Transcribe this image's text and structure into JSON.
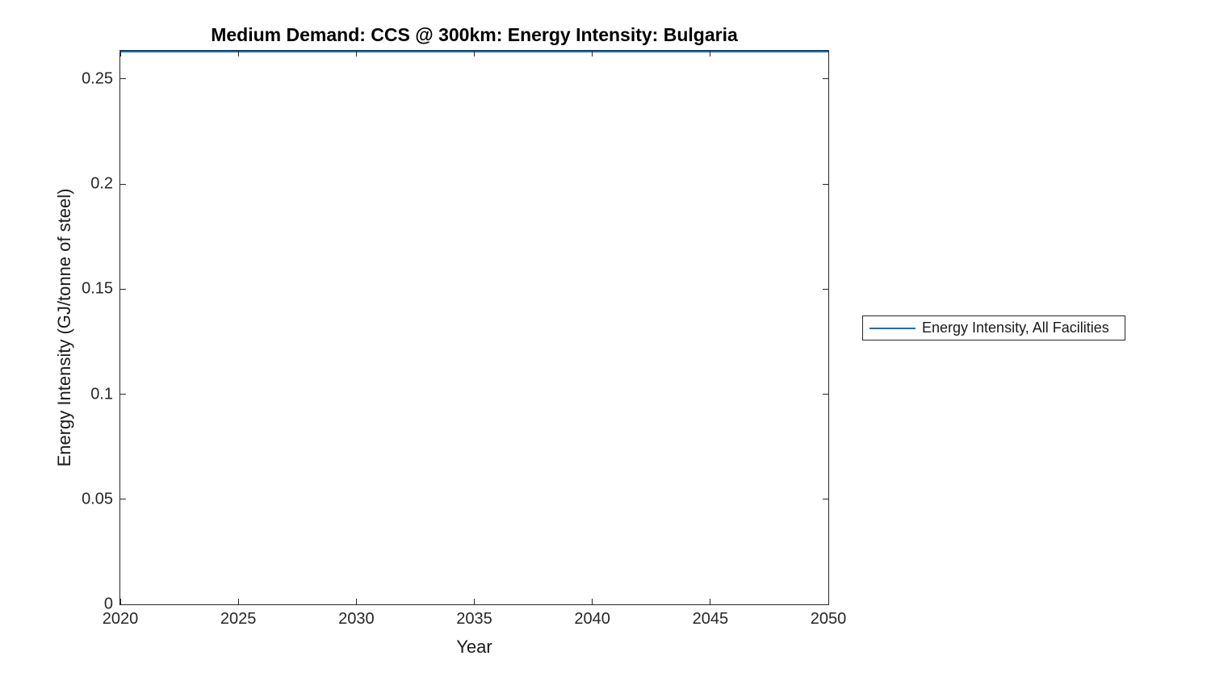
{
  "figure": {
    "title": "Medium Demand: CCS @ 300km: Energy Intensity: Bulgaria",
    "xlabel": "Year",
    "ylabel": "Energy Intensity (GJ/tonne of steel)",
    "legend": {
      "entries": [
        {
          "label": "Energy Intensity, All Facilities",
          "color": "#0072BD"
        }
      ]
    }
  },
  "chart_data": {
    "type": "line",
    "title": "Medium Demand: CCS @ 300km: Energy Intensity: Bulgaria",
    "xlabel": "Year",
    "ylabel": "Energy Intensity (GJ/tonne of steel)",
    "x": [
      2020,
      2050
    ],
    "series": [
      {
        "name": "Energy Intensity, All Facilities",
        "values": [
          0.263,
          0.263
        ],
        "color": "#0072BD"
      }
    ],
    "xlim": [
      2020,
      2050
    ],
    "ylim": [
      0,
      0.2634
    ],
    "x_ticks": [
      2020,
      2025,
      2030,
      2035,
      2040,
      2045,
      2050
    ],
    "y_ticks": [
      0,
      0.05,
      0.1,
      0.15,
      0.2,
      0.25
    ],
    "grid": false,
    "legend_position": "outside-right",
    "axis_color": "#262626",
    "background": "#ffffff"
  }
}
